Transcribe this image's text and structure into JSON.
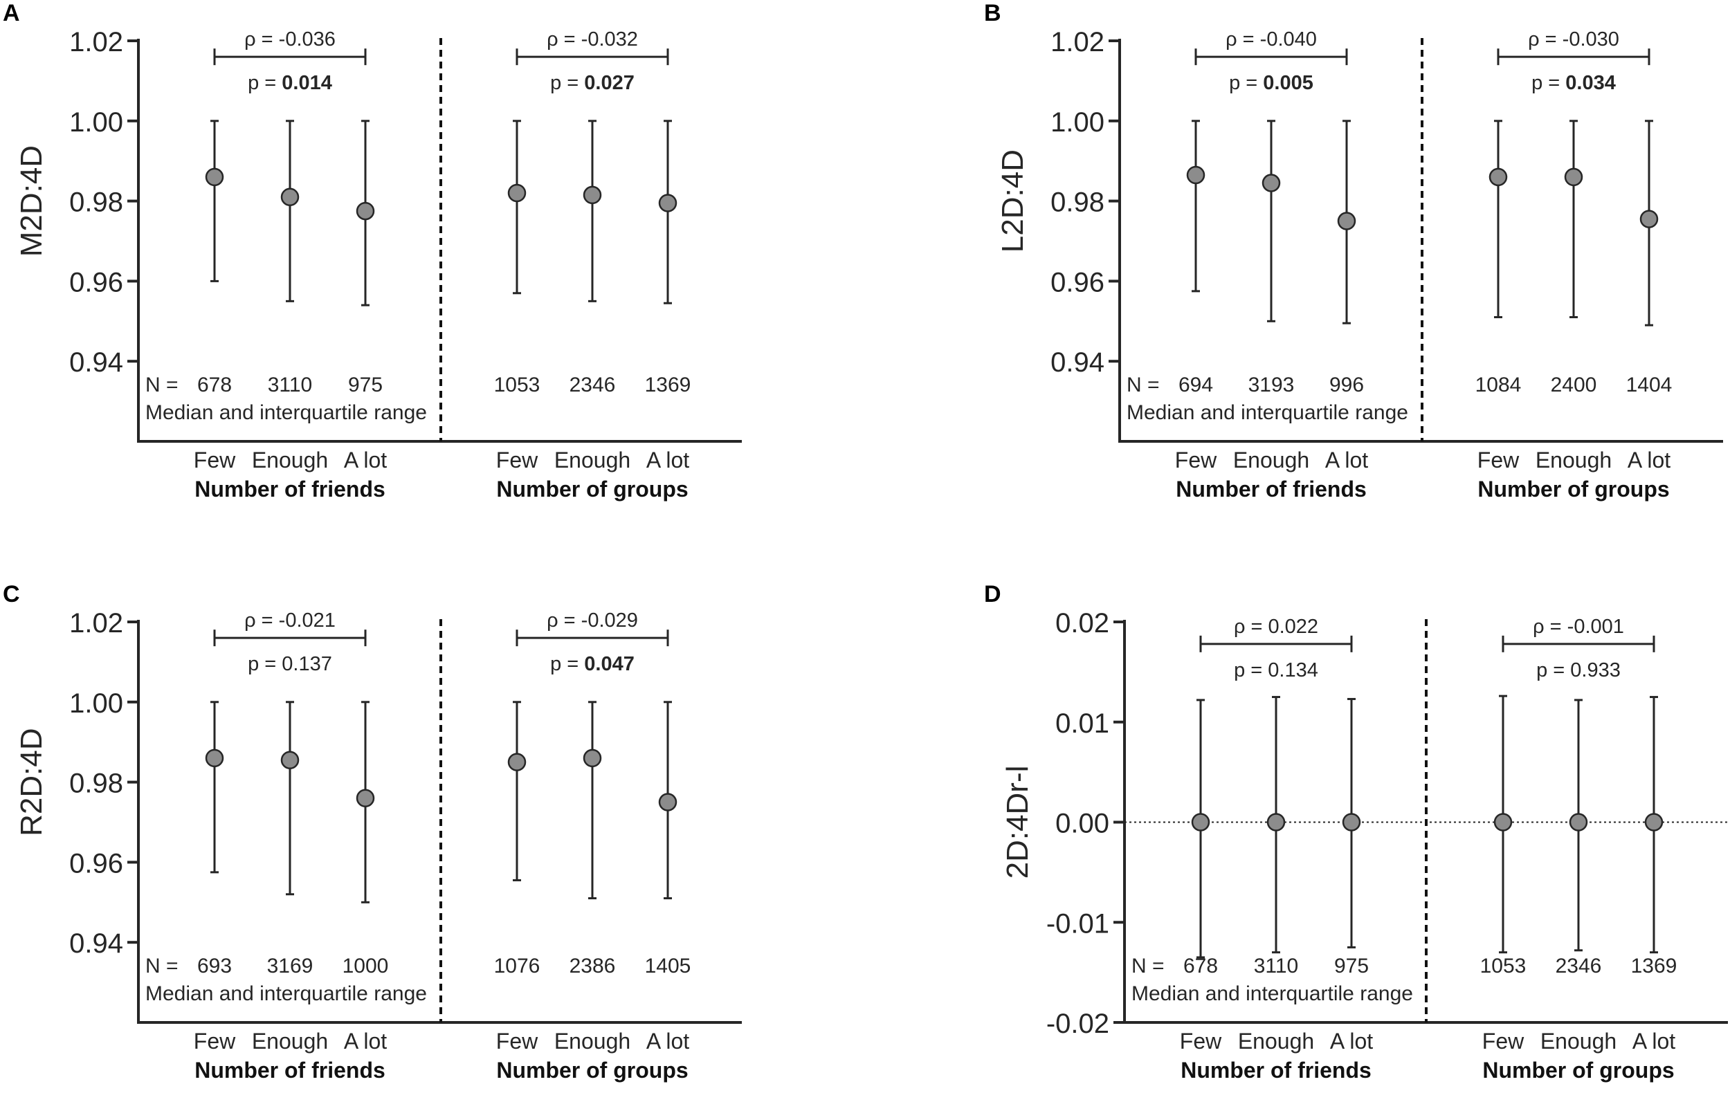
{
  "figure": {
    "group_labels": [
      "Number of friends",
      "Number of groups"
    ],
    "n_prefix": "N =",
    "legend_note": "Median and interquartile range",
    "rho_prefix": "ρ = ",
    "p_prefix": "p = "
  },
  "chart_data": [
    {
      "type": "dot-errorbar",
      "panel_label": "A",
      "ylabel": "M2D:4D",
      "ylim": [
        0.92,
        1.02
      ],
      "yticks": [
        0.94,
        0.96,
        0.98,
        1.0,
        1.02
      ],
      "ytick_labels": [
        "0.94",
        "0.96",
        "0.98",
        "1.00",
        "1.02"
      ],
      "zero_line": false,
      "groups": [
        {
          "name": "Number of friends",
          "categories": [
            "Few",
            "Enough",
            "A lot"
          ],
          "median": [
            0.986,
            0.981,
            0.9775
          ],
          "q1": [
            0.96,
            0.955,
            0.954
          ],
          "q3": [
            1.0,
            1.0,
            1.0
          ],
          "n": [
            "678",
            "3110",
            "975"
          ],
          "rho": "-0.036",
          "p": "0.014",
          "p_bold": true
        },
        {
          "name": "Number of groups",
          "categories": [
            "Few",
            "Enough",
            "A lot"
          ],
          "median": [
            0.982,
            0.9815,
            0.9795
          ],
          "q1": [
            0.957,
            0.955,
            0.9545
          ],
          "q3": [
            1.0,
            1.0,
            1.0
          ],
          "n": [
            "1053",
            "2346",
            "1369"
          ],
          "rho": "-0.032",
          "p": "0.027",
          "p_bold": true
        }
      ]
    },
    {
      "type": "dot-errorbar",
      "panel_label": "B",
      "ylabel": "L2D:4D",
      "ylim": [
        0.92,
        1.02
      ],
      "yticks": [
        0.94,
        0.96,
        0.98,
        1.0,
        1.02
      ],
      "ytick_labels": [
        "0.94",
        "0.96",
        "0.98",
        "1.00",
        "1.02"
      ],
      "zero_line": false,
      "groups": [
        {
          "name": "Number of friends",
          "categories": [
            "Few",
            "Enough",
            "A lot"
          ],
          "median": [
            0.9865,
            0.9845,
            0.975
          ],
          "q1": [
            0.9575,
            0.95,
            0.9495
          ],
          "q3": [
            1.0,
            1.0,
            1.0
          ],
          "n": [
            "694",
            "3193",
            "996"
          ],
          "rho": "-0.040",
          "p": "0.005",
          "p_bold": true
        },
        {
          "name": "Number of groups",
          "categories": [
            "Few",
            "Enough",
            "A lot"
          ],
          "median": [
            0.986,
            0.986,
            0.9755
          ],
          "q1": [
            0.951,
            0.951,
            0.949
          ],
          "q3": [
            1.0,
            1.0,
            1.0
          ],
          "n": [
            "1084",
            "2400",
            "1404"
          ],
          "rho": "-0.030",
          "p": "0.034",
          "p_bold": true
        }
      ]
    },
    {
      "type": "dot-errorbar",
      "panel_label": "C",
      "ylabel": "R2D:4D",
      "ylim": [
        0.92,
        1.02
      ],
      "yticks": [
        0.94,
        0.96,
        0.98,
        1.0,
        1.02
      ],
      "ytick_labels": [
        "0.94",
        "0.96",
        "0.98",
        "1.00",
        "1.02"
      ],
      "zero_line": false,
      "groups": [
        {
          "name": "Number of friends",
          "categories": [
            "Few",
            "Enough",
            "A lot"
          ],
          "median": [
            0.986,
            0.9855,
            0.976
          ],
          "q1": [
            0.9575,
            0.952,
            0.95
          ],
          "q3": [
            1.0,
            1.0,
            1.0
          ],
          "n": [
            "693",
            "3169",
            "1000"
          ],
          "rho": "-0.021",
          "p": "0.137",
          "p_bold": false
        },
        {
          "name": "Number of groups",
          "categories": [
            "Few",
            "Enough",
            "A lot"
          ],
          "median": [
            0.985,
            0.986,
            0.975
          ],
          "q1": [
            0.9555,
            0.951,
            0.951
          ],
          "q3": [
            1.0,
            1.0,
            1.0
          ],
          "n": [
            "1076",
            "2386",
            "1405"
          ],
          "rho": "-0.029",
          "p": "0.047",
          "p_bold": true
        }
      ]
    },
    {
      "type": "dot-errorbar",
      "panel_label": "D",
      "ylabel": "2D:4Dr-l",
      "ylim": [
        -0.02,
        0.02
      ],
      "yticks": [
        -0.02,
        -0.01,
        0.0,
        0.01,
        0.02
      ],
      "ytick_labels": [
        "-0.02",
        "-0.01",
        "0.00",
        "0.01",
        "0.02"
      ],
      "zero_line": true,
      "groups": [
        {
          "name": "Number of friends",
          "categories": [
            "Few",
            "Enough",
            "A lot"
          ],
          "median": [
            0.0,
            0.0,
            0.0
          ],
          "q1": [
            -0.0135,
            -0.013,
            -0.0125
          ],
          "q3": [
            0.0122,
            0.0125,
            0.0123
          ],
          "n": [
            "678",
            "3110",
            "975"
          ],
          "rho": "0.022",
          "p": "0.134",
          "p_bold": false
        },
        {
          "name": "Number of groups",
          "categories": [
            "Few",
            "Enough",
            "A lot"
          ],
          "median": [
            0.0,
            0.0,
            0.0
          ],
          "q1": [
            -0.013,
            -0.0128,
            -0.013
          ],
          "q3": [
            0.0126,
            0.0122,
            0.0125
          ],
          "n": [
            "1053",
            "2346",
            "1369"
          ],
          "rho": "-0.001",
          "p": "0.933",
          "p_bold": false
        }
      ]
    }
  ]
}
